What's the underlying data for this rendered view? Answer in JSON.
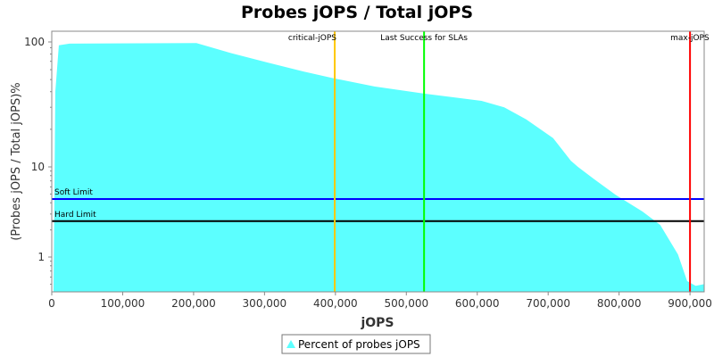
{
  "chart_data": {
    "type": "area",
    "title": "Probes jOPS / Total jOPS",
    "xlabel": "jOPS",
    "ylabel": "(Probes jOPS / Total jOPS)%",
    "xlim": [
      0,
      920000
    ],
    "ylim": [
      0.41,
      122
    ],
    "yscale": "log",
    "x_ticks": [
      0,
      100000,
      200000,
      300000,
      400000,
      500000,
      600000,
      700000,
      800000,
      900000
    ],
    "x_tick_labels": [
      "0",
      "100,000",
      "200,000",
      "300,000",
      "400,000",
      "500,000",
      "600,000",
      "700,000",
      "800,000",
      "900,000"
    ],
    "y_ticks": [
      1,
      10,
      100
    ],
    "y_tick_labels": [
      "1",
      "10",
      "100"
    ],
    "series": [
      {
        "name": "Percent of probes jOPS",
        "color": "#5CFFFF",
        "x": [
          2500,
          5000,
          10000,
          25000,
          204000,
          254000,
          304000,
          355000,
          399000,
          455000,
          525000,
          606000,
          638000,
          669000,
          707000,
          732000,
          742000,
          764000,
          795000,
          833000,
          858000,
          883000,
          896000,
          908000,
          920000
        ],
        "y": [
          0.41,
          40,
          94,
          97,
          98,
          81,
          68.5,
          58,
          51,
          44,
          38.6,
          33.8,
          30,
          24,
          17,
          11.2,
          10,
          7.4,
          4.9,
          3.2,
          2.27,
          1.07,
          0.54,
          0.48,
          0.5
        ]
      }
    ],
    "hlines": [
      {
        "label": "Soft Limit",
        "value": 4.4,
        "color": "#0000FF"
      },
      {
        "label": "Hard Limit",
        "value": 2.5,
        "color": "#000000"
      }
    ],
    "vlines": [
      {
        "label": "critical-jOPS",
        "value": 399000,
        "color": "#FFC800"
      },
      {
        "label": "Last Success for SLAs",
        "value": 525000,
        "color": "#00FF00"
      },
      {
        "label": "max-jOPS",
        "value": 900000,
        "color": "#FF0000"
      }
    ],
    "legend": {
      "position": "bottom",
      "label": "Percent of probes jOPS"
    },
    "grid": false
  }
}
